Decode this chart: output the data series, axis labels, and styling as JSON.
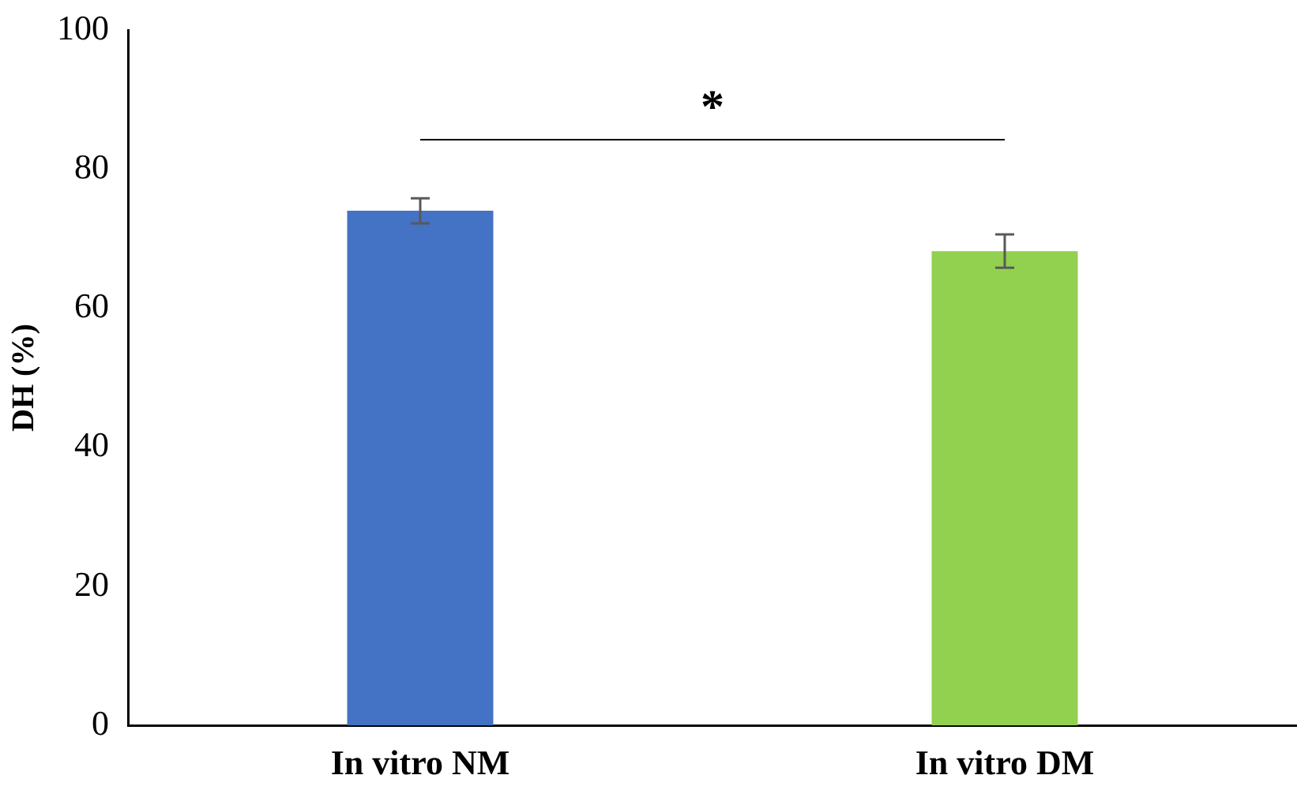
{
  "chart_data": {
    "type": "bar",
    "ylabel": "DH (%)",
    "categories": [
      "In vitro NM",
      "In vitro DM"
    ],
    "values": [
      74,
      68.2
    ],
    "colors": [
      "#4472c4",
      "#92d050"
    ],
    "errors": [
      1.8,
      2.4
    ],
    "ylim": [
      0,
      100
    ],
    "yticks": [
      0,
      20,
      40,
      60,
      80,
      100
    ],
    "grid": false,
    "legend": false,
    "annotations": [
      "*"
    ]
  }
}
